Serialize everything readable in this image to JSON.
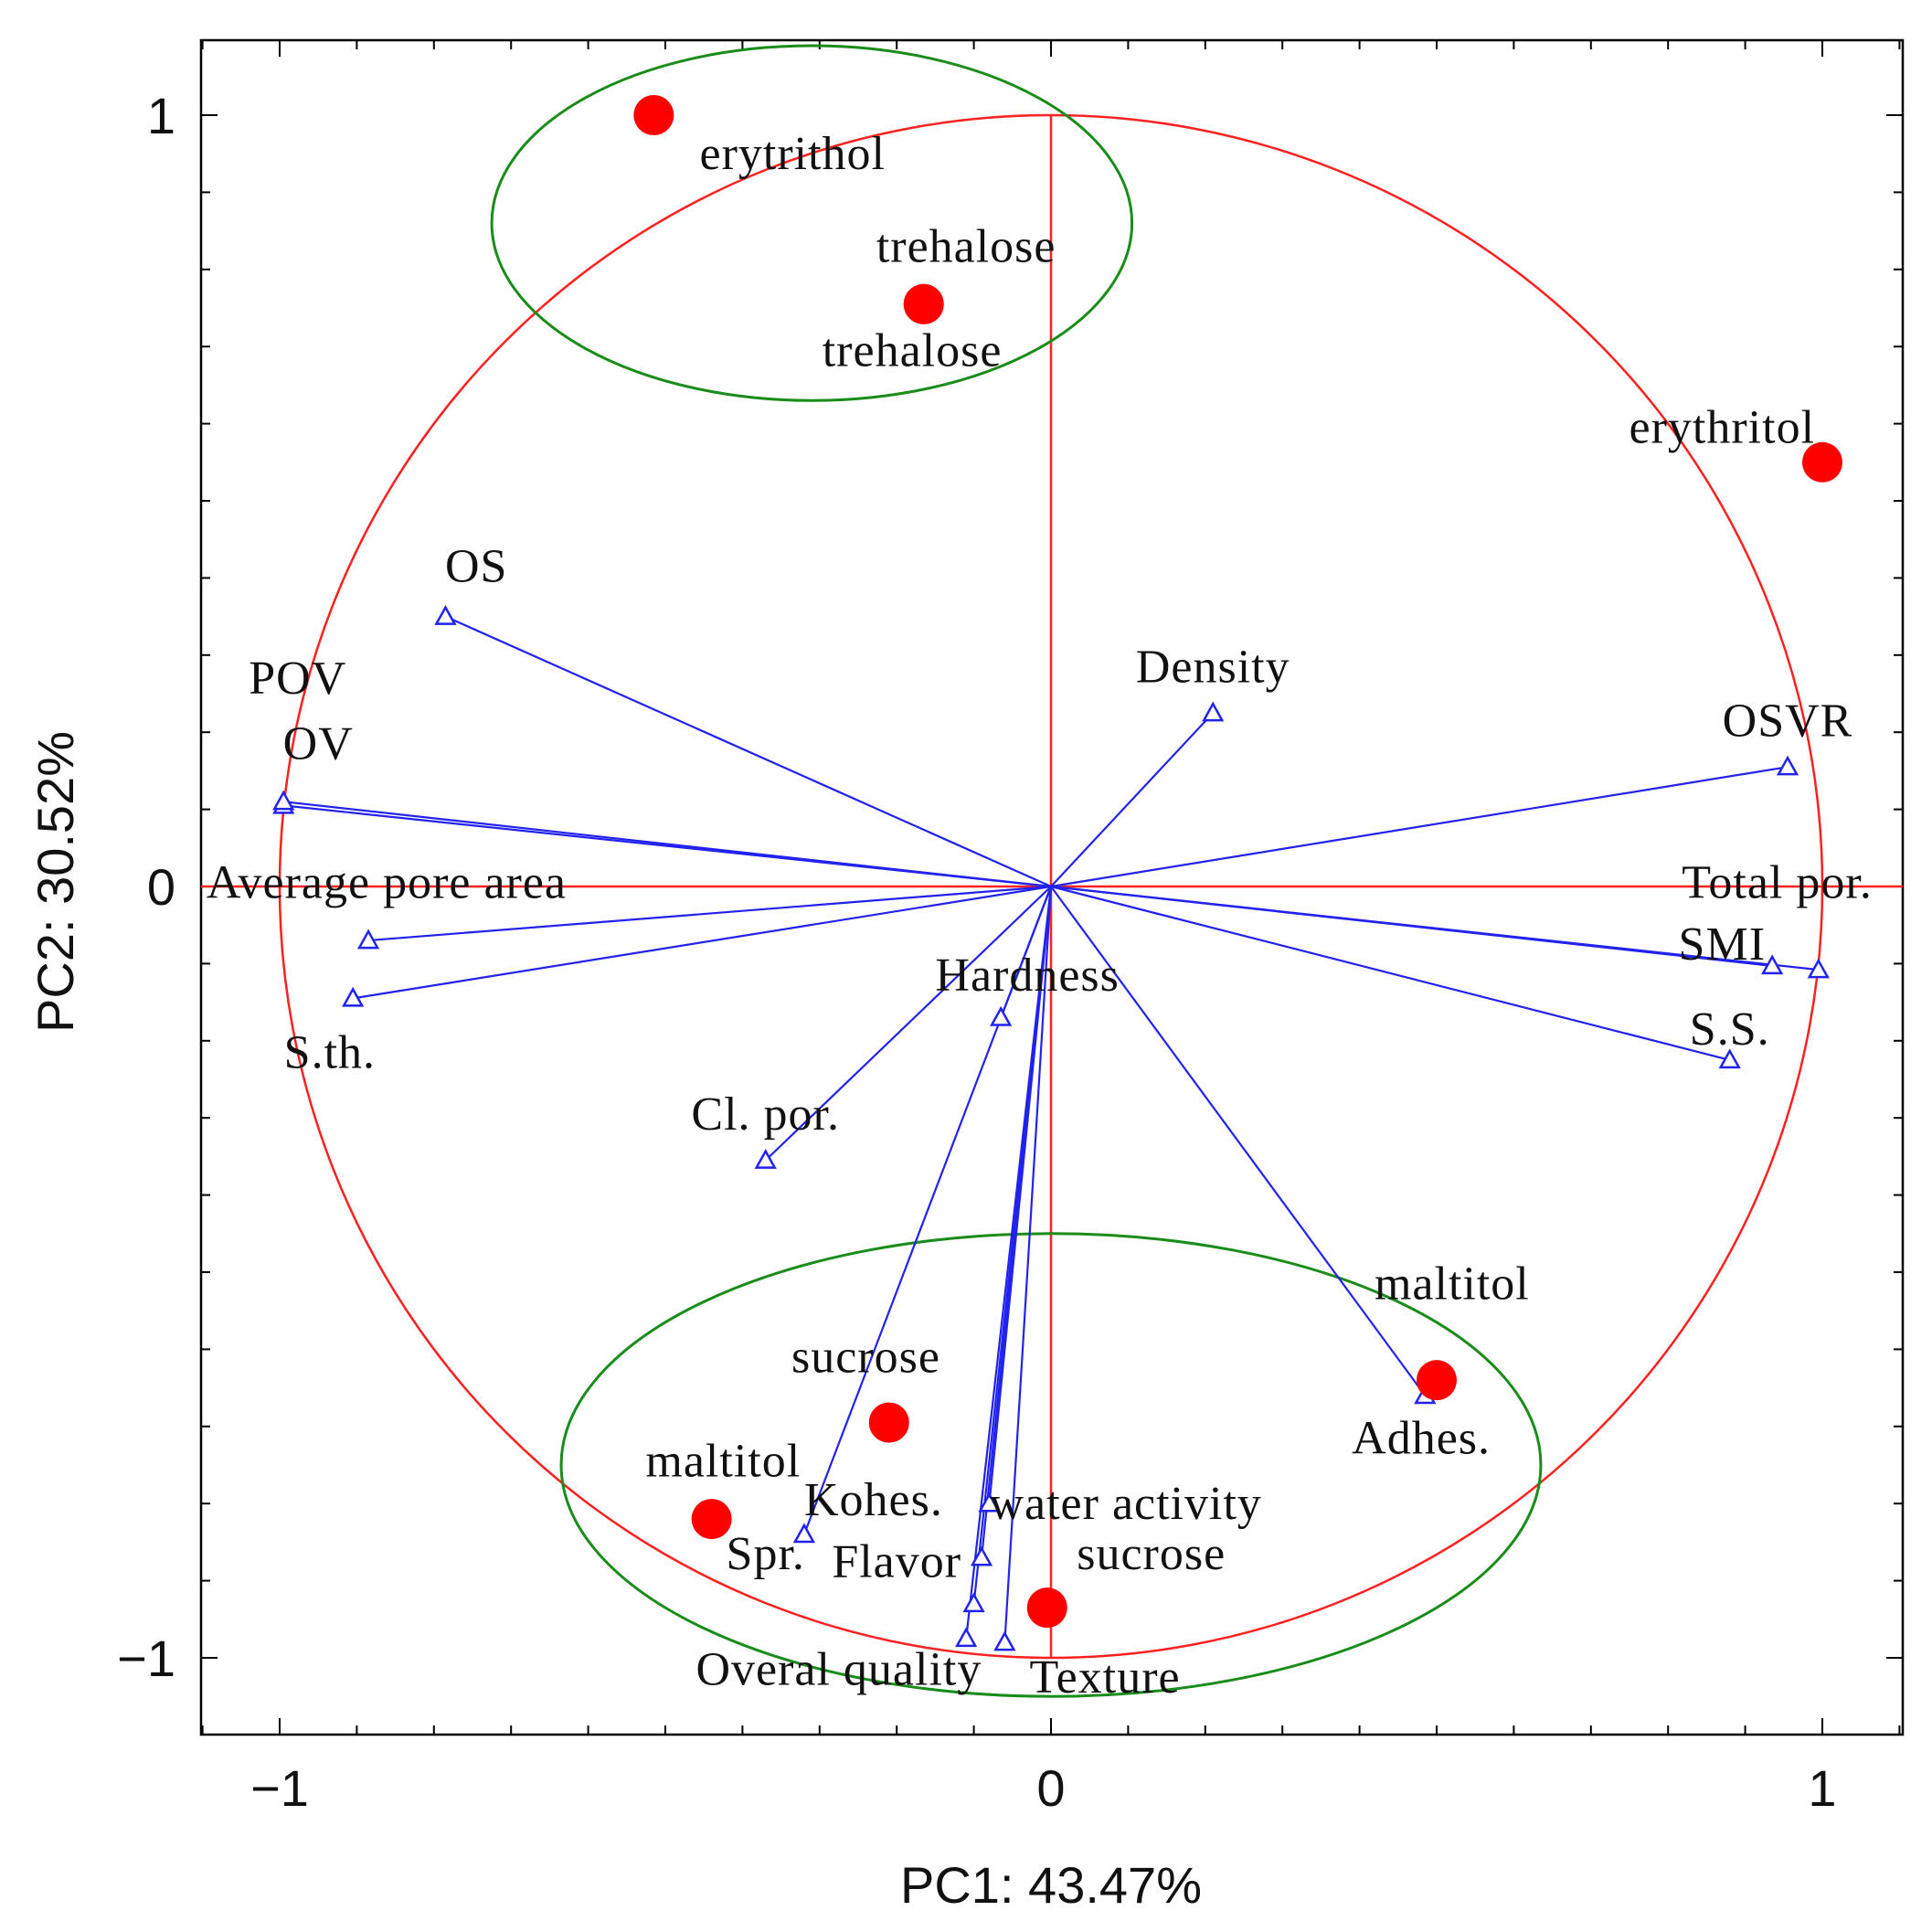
{
  "chart_data": {
    "type": "scatter",
    "subtype": "pca-biplot",
    "xlabel": "PC1: 43.47%",
    "ylabel": "PC2: 30.52%",
    "xlim": [
      -1.1,
      1.1
    ],
    "ylim": [
      -1.1,
      1.1
    ],
    "xticks": [
      {
        "v": -1,
        "label": "−1"
      },
      {
        "v": 0,
        "label": "0"
      },
      {
        "v": 1,
        "label": "1"
      }
    ],
    "yticks": [
      {
        "v": 1,
        "label": "1"
      },
      {
        "v": 0,
        "label": "0"
      },
      {
        "v": -1,
        "label": "−1"
      }
    ],
    "unit_circle": {
      "radius": 1,
      "color": "#ff2020"
    },
    "colors": {
      "samples": "#ff0000",
      "vectors": "#2222ee",
      "groups": "#1a8c1a",
      "axes": "#ff2020"
    },
    "group_ellipses": [
      {
        "name": "upper-group",
        "cx": -0.31,
        "cy": 0.86,
        "rx": 0.415,
        "ry": 0.23
      },
      {
        "name": "lower-group",
        "cx": 0.0,
        "cy": -0.75,
        "rx": 0.635,
        "ry": 0.3
      }
    ],
    "samples": [
      {
        "label": "erytrithol",
        "x": -0.515,
        "y": 1.0,
        "lx": -0.335,
        "ly": 0.93
      },
      {
        "label": "trehalose",
        "x": -0.165,
        "y": 0.755,
        "lx": -0.11,
        "ly": 0.81
      },
      {
        "label": "trehalose",
        "x": -0.165,
        "y": 0.755,
        "lx": -0.18,
        "ly": 0.675
      },
      {
        "label": "erythritol",
        "x": 1.0,
        "y": 0.55,
        "lx": 0.87,
        "ly": 0.575
      },
      {
        "label": "maltitol",
        "x": 0.5,
        "y": -0.64,
        "lx": 0.52,
        "ly": -0.535
      },
      {
        "label": "sucrose",
        "x": -0.21,
        "y": -0.695,
        "lx": -0.24,
        "ly": -0.63
      },
      {
        "label": "maltitol",
        "x": -0.44,
        "y": -0.82,
        "lx": -0.425,
        "ly": -0.765
      },
      {
        "label": "sucrose",
        "x": -0.005,
        "y": -0.935,
        "lx": 0.13,
        "ly": -0.885
      }
    ],
    "variables": [
      {
        "label": "OS",
        "x": -0.785,
        "y": 0.35,
        "lx": -0.745,
        "ly": 0.395,
        "anchor": "middle"
      },
      {
        "label": "POV",
        "x": -0.995,
        "y": 0.105,
        "lx": -1.04,
        "ly": 0.25,
        "anchor": "start"
      },
      {
        "label": "OV",
        "x": -0.995,
        "y": 0.11,
        "lx": -0.95,
        "ly": 0.165,
        "anchor": "middle"
      },
      {
        "label": "Average pore area",
        "x": -0.885,
        "y": -0.07,
        "lx": -1.095,
        "ly": -0.015,
        "anchor": "start"
      },
      {
        "label": "S.th.",
        "x": -0.905,
        "y": -0.145,
        "lx": -0.935,
        "ly": -0.235,
        "anchor": "middle"
      },
      {
        "label": "Hardness",
        "x": -0.065,
        "y": -0.17,
        "lx": -0.15,
        "ly": -0.135,
        "anchor": "start"
      },
      {
        "label": "Cl. por.",
        "x": -0.37,
        "y": -0.355,
        "lx": -0.37,
        "ly": -0.315,
        "anchor": "middle"
      },
      {
        "label": "Density",
        "x": 0.21,
        "y": 0.225,
        "lx": 0.21,
        "ly": 0.265,
        "anchor": "middle"
      },
      {
        "label": "OSVR",
        "x": 0.955,
        "y": 0.155,
        "lx": 0.955,
        "ly": 0.195,
        "anchor": "middle"
      },
      {
        "label": "Total por.",
        "x": 0.995,
        "y": -0.108,
        "lx": 1.065,
        "ly": -0.015,
        "anchor": "end"
      },
      {
        "label": "SMI",
        "x": 0.935,
        "y": -0.103,
        "lx": 0.87,
        "ly": -0.095,
        "anchor": "middle"
      },
      {
        "label": "S.S.",
        "x": 0.88,
        "y": -0.225,
        "lx": 0.88,
        "ly": -0.205,
        "anchor": "middle"
      },
      {
        "label": "Adhes.",
        "x": 0.485,
        "y": -0.66,
        "lx": 0.48,
        "ly": -0.735,
        "anchor": "middle"
      },
      {
        "label": "Kohes.",
        "x": -0.32,
        "y": -0.84,
        "lx": -0.14,
        "ly": -0.815,
        "anchor": "end"
      },
      {
        "label": "water activity",
        "x": -0.08,
        "y": -0.8,
        "lx": -0.08,
        "ly": -0.82,
        "anchor": "start"
      },
      {
        "label": "Spr.",
        "x": -0.1,
        "y": -0.93,
        "lx": -0.37,
        "ly": -0.885,
        "anchor": "middle"
      },
      {
        "label": "Flavor",
        "x": -0.09,
        "y": -0.87,
        "lx": -0.2,
        "ly": -0.895,
        "anchor": "middle"
      },
      {
        "label": "Overal quality",
        "x": -0.11,
        "y": -0.975,
        "lx": -0.275,
        "ly": -1.035,
        "anchor": "middle"
      },
      {
        "label": "Texture",
        "x": -0.06,
        "y": -0.98,
        "lx": 0.07,
        "ly": -1.045,
        "anchor": "middle"
      }
    ]
  }
}
